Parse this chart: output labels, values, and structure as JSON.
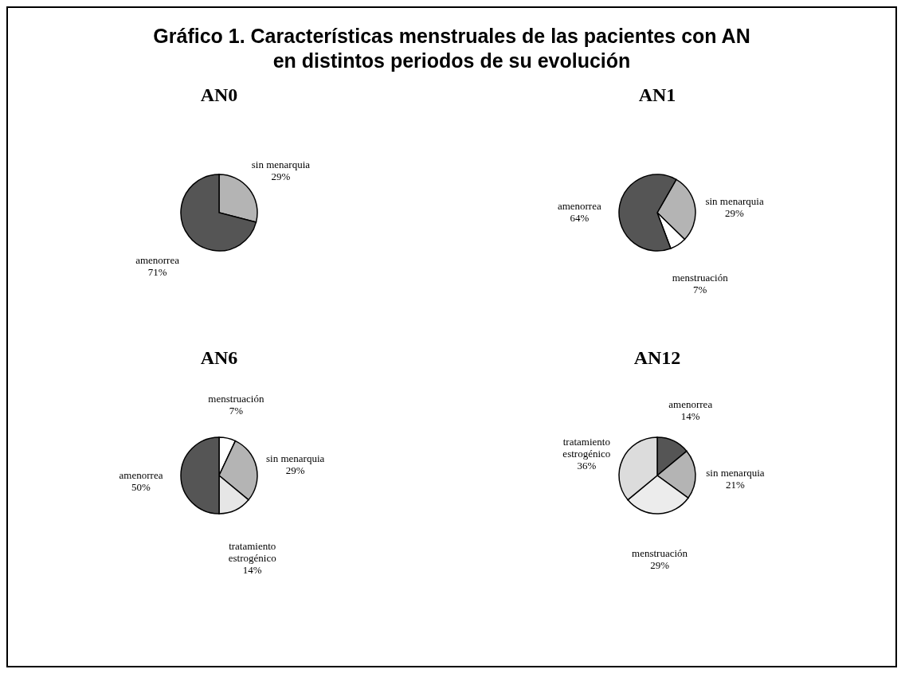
{
  "chart_data": [
    {
      "type": "pie",
      "title": "AN0",
      "annotations": [
        "Gráfico 1.  Características menstruales de las pacientes con AN en distintos periodos de su evolución"
      ],
      "categories": [
        "sin menarquia",
        "amenorrea"
      ],
      "values": [
        29,
        71
      ],
      "value_labels": [
        "29%",
        "71%"
      ],
      "colors": [
        "#b4b4b4",
        "#555555"
      ],
      "legend": false
    },
    {
      "type": "pie",
      "title": "AN1",
      "categories": [
        "sin menarquia",
        "menstruación",
        "amenorrea"
      ],
      "values": [
        29,
        7,
        64
      ],
      "value_labels": [
        "29%",
        "7%",
        "64%"
      ],
      "colors": [
        "#b4b4b4",
        "#ffffff",
        "#555555"
      ],
      "legend": false
    },
    {
      "type": "pie",
      "title": "AN6",
      "categories": [
        "menstruación",
        "sin menarquia",
        "tratamiento estrogénico",
        "amenorrea"
      ],
      "values": [
        7,
        29,
        14,
        50
      ],
      "value_labels": [
        "7%",
        "29%",
        "14%",
        "50%"
      ],
      "colors": [
        "#ffffff",
        "#b4b4b4",
        "#e6e6e6",
        "#555555"
      ],
      "legend": false
    },
    {
      "type": "pie",
      "title": "AN12",
      "categories": [
        "amenorrea",
        "sin menarquia",
        "menstruación",
        "tratamiento estrogénico"
      ],
      "values": [
        14,
        21,
        29,
        36
      ],
      "value_labels": [
        "14%",
        "21%",
        "29%",
        "36%"
      ],
      "colors": [
        "#555555",
        "#b4b4b4",
        "#ececec",
        "#dcdcdc"
      ],
      "legend": false
    }
  ]
}
